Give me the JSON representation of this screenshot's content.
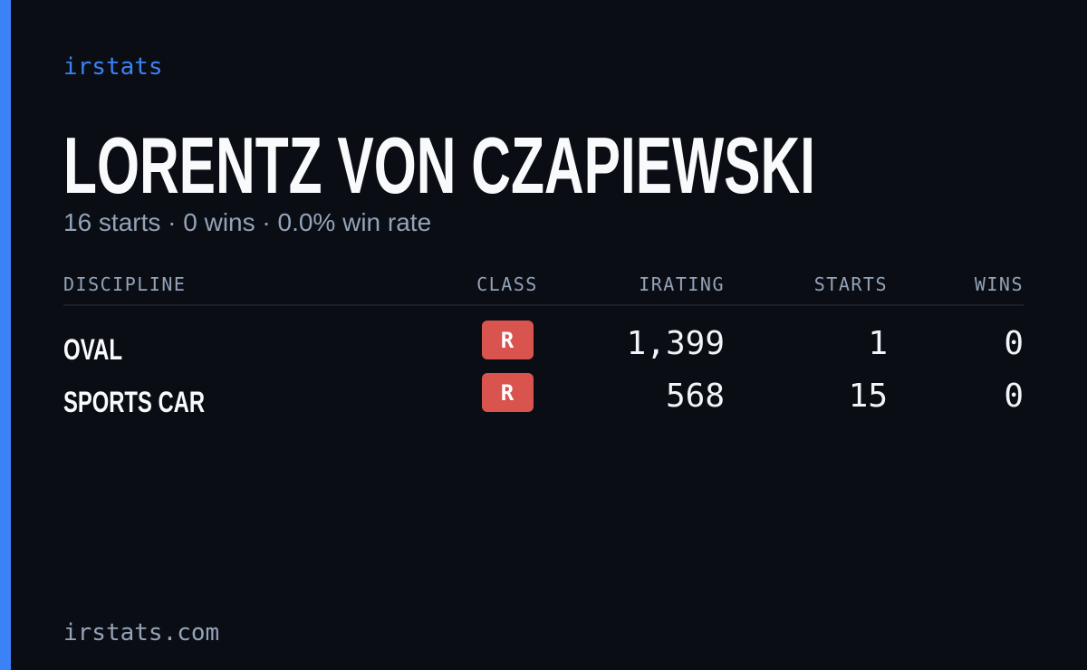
{
  "brand": "irstats",
  "name": "LORENTZ VON CZAPIEWSKI",
  "summary": "16 starts · 0 wins · 0.0% win rate",
  "table": {
    "headers": [
      "DISCIPLINE",
      "CLASS",
      "IRATING",
      "STARTS",
      "WINS"
    ],
    "rows": [
      [
        "OVAL",
        "R",
        "1,399",
        "1",
        "0"
      ],
      [
        "SPORTS CAR",
        "R",
        "568",
        "15",
        "0"
      ]
    ]
  },
  "footer": "irstats.com"
}
